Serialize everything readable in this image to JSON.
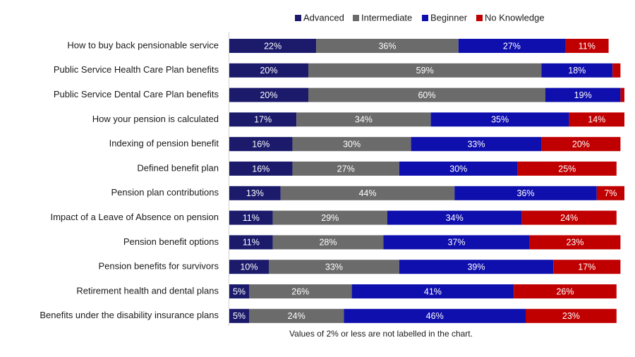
{
  "chart_data": {
    "type": "stacked-bar",
    "orientation": "horizontal",
    "categories": [
      "How to buy back pensionable service",
      "Public Service Health Care Plan benefits",
      "Public Service Dental Care Plan benefits",
      "How your pension is calculated",
      "Indexing of pension benefit",
      "Defined benefit plan",
      "Pension plan contributions",
      "Impact of a Leave of Absence on pension",
      "Pension benefit options",
      "Pension benefits for survivors",
      "Retirement health and dental plans",
      "Benefits under the disability insurance plans"
    ],
    "series": [
      {
        "name": "Advanced",
        "color": "#1b1a6b",
        "values": [
          22,
          20,
          20,
          17,
          16,
          16,
          13,
          11,
          11,
          10,
          5,
          5
        ],
        "value_labels": [
          "22%",
          "20%",
          "20%",
          "17%",
          "16%",
          "16%",
          "13%",
          "11%",
          "11%",
          "10%",
          "5%",
          "5%"
        ]
      },
      {
        "name": "Intermediate",
        "color": "#6b6b6b",
        "values": [
          36,
          59,
          60,
          34,
          30,
          27,
          44,
          29,
          28,
          33,
          26,
          24
        ],
        "value_labels": [
          "36%",
          "59%",
          "60%",
          "34%",
          "30%",
          "27%",
          "44%",
          "29%",
          "28%",
          "33%",
          "26%",
          "24%"
        ]
      },
      {
        "name": "Beginner",
        "color": "#0f0fae",
        "values": [
          27,
          18,
          19,
          35,
          33,
          30,
          36,
          34,
          37,
          39,
          41,
          46
        ],
        "value_labels": [
          "27%",
          "18%",
          "19%",
          "35%",
          "33%",
          "30%",
          "36%",
          "34%",
          "37%",
          "39%",
          "41%",
          "46%"
        ]
      },
      {
        "name": "No Knowledge",
        "color": "#c00000",
        "values": [
          11,
          2,
          1,
          14,
          20,
          25,
          7,
          24,
          23,
          17,
          26,
          23
        ],
        "value_labels": [
          "11%",
          null,
          null,
          "14%",
          "20%",
          "25%",
          "7%",
          "24%",
          "23%",
          "17%",
          "26%",
          "23%"
        ]
      }
    ],
    "note": "Values of 2% or less are not labelled in the chart."
  }
}
